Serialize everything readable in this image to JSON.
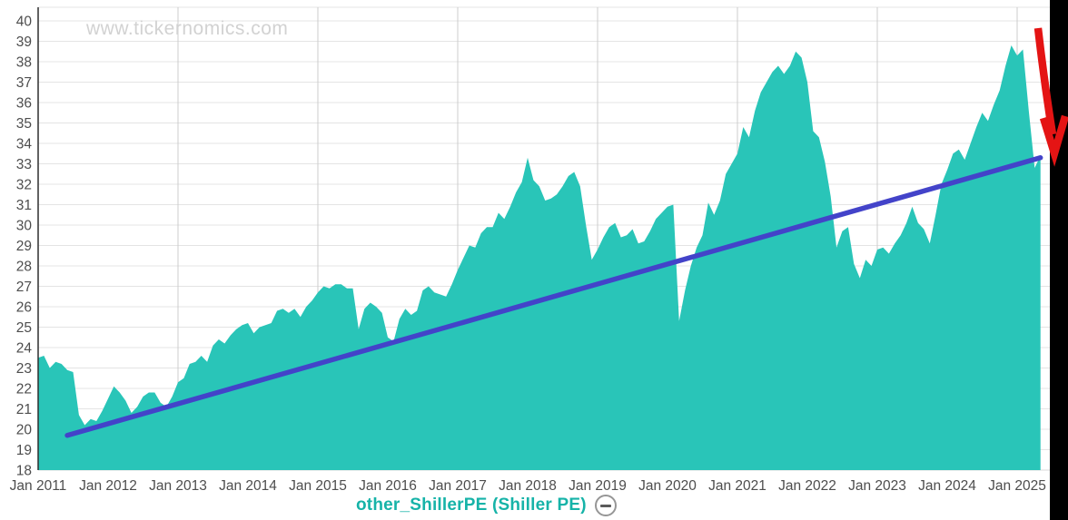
{
  "watermark": "www.tickernomics.com",
  "legend": {
    "label": "other_ShillerPE (Shiller PE)",
    "remove_icon": "minus-circle-icon"
  },
  "colors": {
    "area": "#29c5b8",
    "trend_line": "#4343c9",
    "arrow": "#e41414",
    "legend_text": "#16b3a8",
    "axis_text": "#4d4d4d",
    "grid_horizontal": "#e4e4e4",
    "grid_vertical": "#cdcdcd",
    "axis_spine": "#2f2f2f",
    "watermark_text": "#d2d2d2",
    "right_strip": "#000000"
  },
  "chart_data": {
    "type": "area",
    "title": "",
    "series_name": "other_ShillerPE (Shiller PE)",
    "x_start": "2011-01",
    "x_interval": "monthly",
    "values": [
      23.5,
      23.6,
      23.0,
      23.3,
      23.2,
      22.9,
      22.8,
      20.7,
      20.2,
      20.5,
      20.4,
      20.9,
      21.5,
      22.1,
      21.8,
      21.4,
      20.8,
      21.1,
      21.6,
      21.8,
      21.8,
      21.3,
      21.1,
      21.6,
      22.3,
      22.5,
      23.2,
      23.3,
      23.6,
      23.3,
      24.1,
      24.4,
      24.2,
      24.6,
      24.9,
      25.1,
      25.2,
      24.7,
      25.0,
      25.1,
      25.2,
      25.8,
      25.9,
      25.7,
      25.9,
      25.5,
      26.0,
      26.3,
      26.7,
      27.0,
      26.9,
      27.1,
      27.1,
      26.9,
      26.9,
      24.9,
      25.9,
      26.2,
      26.0,
      25.7,
      24.5,
      24.3,
      25.4,
      25.9,
      25.6,
      25.8,
      26.8,
      27.0,
      26.7,
      26.6,
      26.5,
      27.1,
      27.8,
      28.4,
      29.0,
      28.9,
      29.6,
      29.9,
      29.9,
      30.6,
      30.3,
      30.9,
      31.6,
      32.1,
      33.3,
      32.2,
      31.9,
      31.2,
      31.3,
      31.5,
      31.9,
      32.4,
      32.6,
      31.9,
      30.0,
      28.3,
      28.8,
      29.4,
      29.9,
      30.1,
      29.4,
      29.5,
      29.8,
      29.1,
      29.2,
      29.7,
      30.3,
      30.6,
      30.9,
      31.0,
      25.3,
      26.8,
      28.0,
      28.9,
      29.5,
      31.1,
      30.5,
      31.2,
      32.5,
      33.0,
      33.5,
      34.8,
      34.3,
      35.6,
      36.5,
      37.0,
      37.5,
      37.8,
      37.4,
      37.8,
      38.5,
      38.2,
      37.0,
      34.6,
      34.3,
      33.1,
      31.4,
      28.9,
      29.7,
      29.9,
      28.1,
      27.4,
      28.3,
      28.0,
      28.8,
      28.9,
      28.6,
      29.1,
      29.5,
      30.1,
      30.9,
      30.1,
      29.8,
      29.1,
      30.5,
      32.0,
      32.7,
      33.5,
      33.7,
      33.2,
      34.0,
      34.8,
      35.5,
      35.1,
      35.9,
      36.6,
      37.8,
      38.8,
      38.3,
      38.6,
      35.6,
      32.8,
      33.4
    ],
    "ylim": [
      18,
      41.2
    ],
    "yticks": [
      18,
      19,
      20,
      21,
      22,
      23,
      24,
      25,
      26,
      27,
      28,
      29,
      30,
      31,
      32,
      33,
      34,
      35,
      36,
      37,
      38,
      39,
      40
    ],
    "xticks": [
      "Jan 2011",
      "Jan 2012",
      "Jan 2013",
      "Jan 2014",
      "Jan 2015",
      "Jan 2016",
      "Jan 2017",
      "Jan 2018",
      "Jan 2019",
      "Jan 2020",
      "Jan 2021",
      "Jan 2022",
      "Jan 2023",
      "Jan 2024",
      "Jan 2025"
    ],
    "grid": true,
    "legend_position": "bottom-center",
    "trend_line": {
      "start": {
        "date": "2011-06",
        "value": 19.7
      },
      "end": {
        "date": "2025-05",
        "value": 33.3
      }
    },
    "annotation": {
      "type": "down-arrow",
      "color": "#e41414",
      "position": "top-right",
      "meaning": "sharp drop at end of series"
    }
  }
}
